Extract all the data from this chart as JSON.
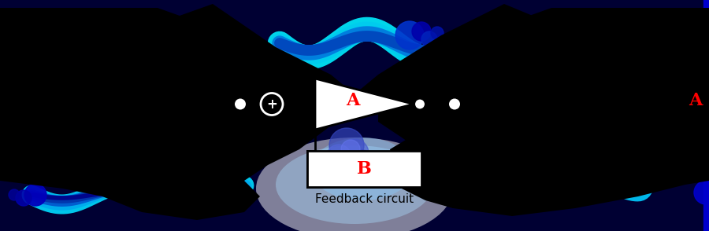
{
  "fig_width": 9.0,
  "fig_height": 2.94,
  "dpi": 100,
  "bg_color": "#000033",
  "amp_label": "A",
  "amp_label_color": "#ff0000",
  "feedback_label": "B",
  "feedback_label_color": "#ff0000",
  "circuit_label": "Feedback circuit",
  "circuit_label_color": "#000000",
  "plus_symbol": "+",
  "left_dot_color": "white",
  "right_dot_color": "white",
  "sum_circle_fill": "black",
  "sum_circle_edge": "white",
  "amp_tri_fill": "white",
  "amp_tri_edge": "black",
  "fb_box_fill": "white",
  "fb_box_edge": "black",
  "out_circle_fill": "white",
  "out_circle_edge": "black",
  "wire_color": "black",
  "wire_lw": 2.0,
  "circuit_lw": 11
}
